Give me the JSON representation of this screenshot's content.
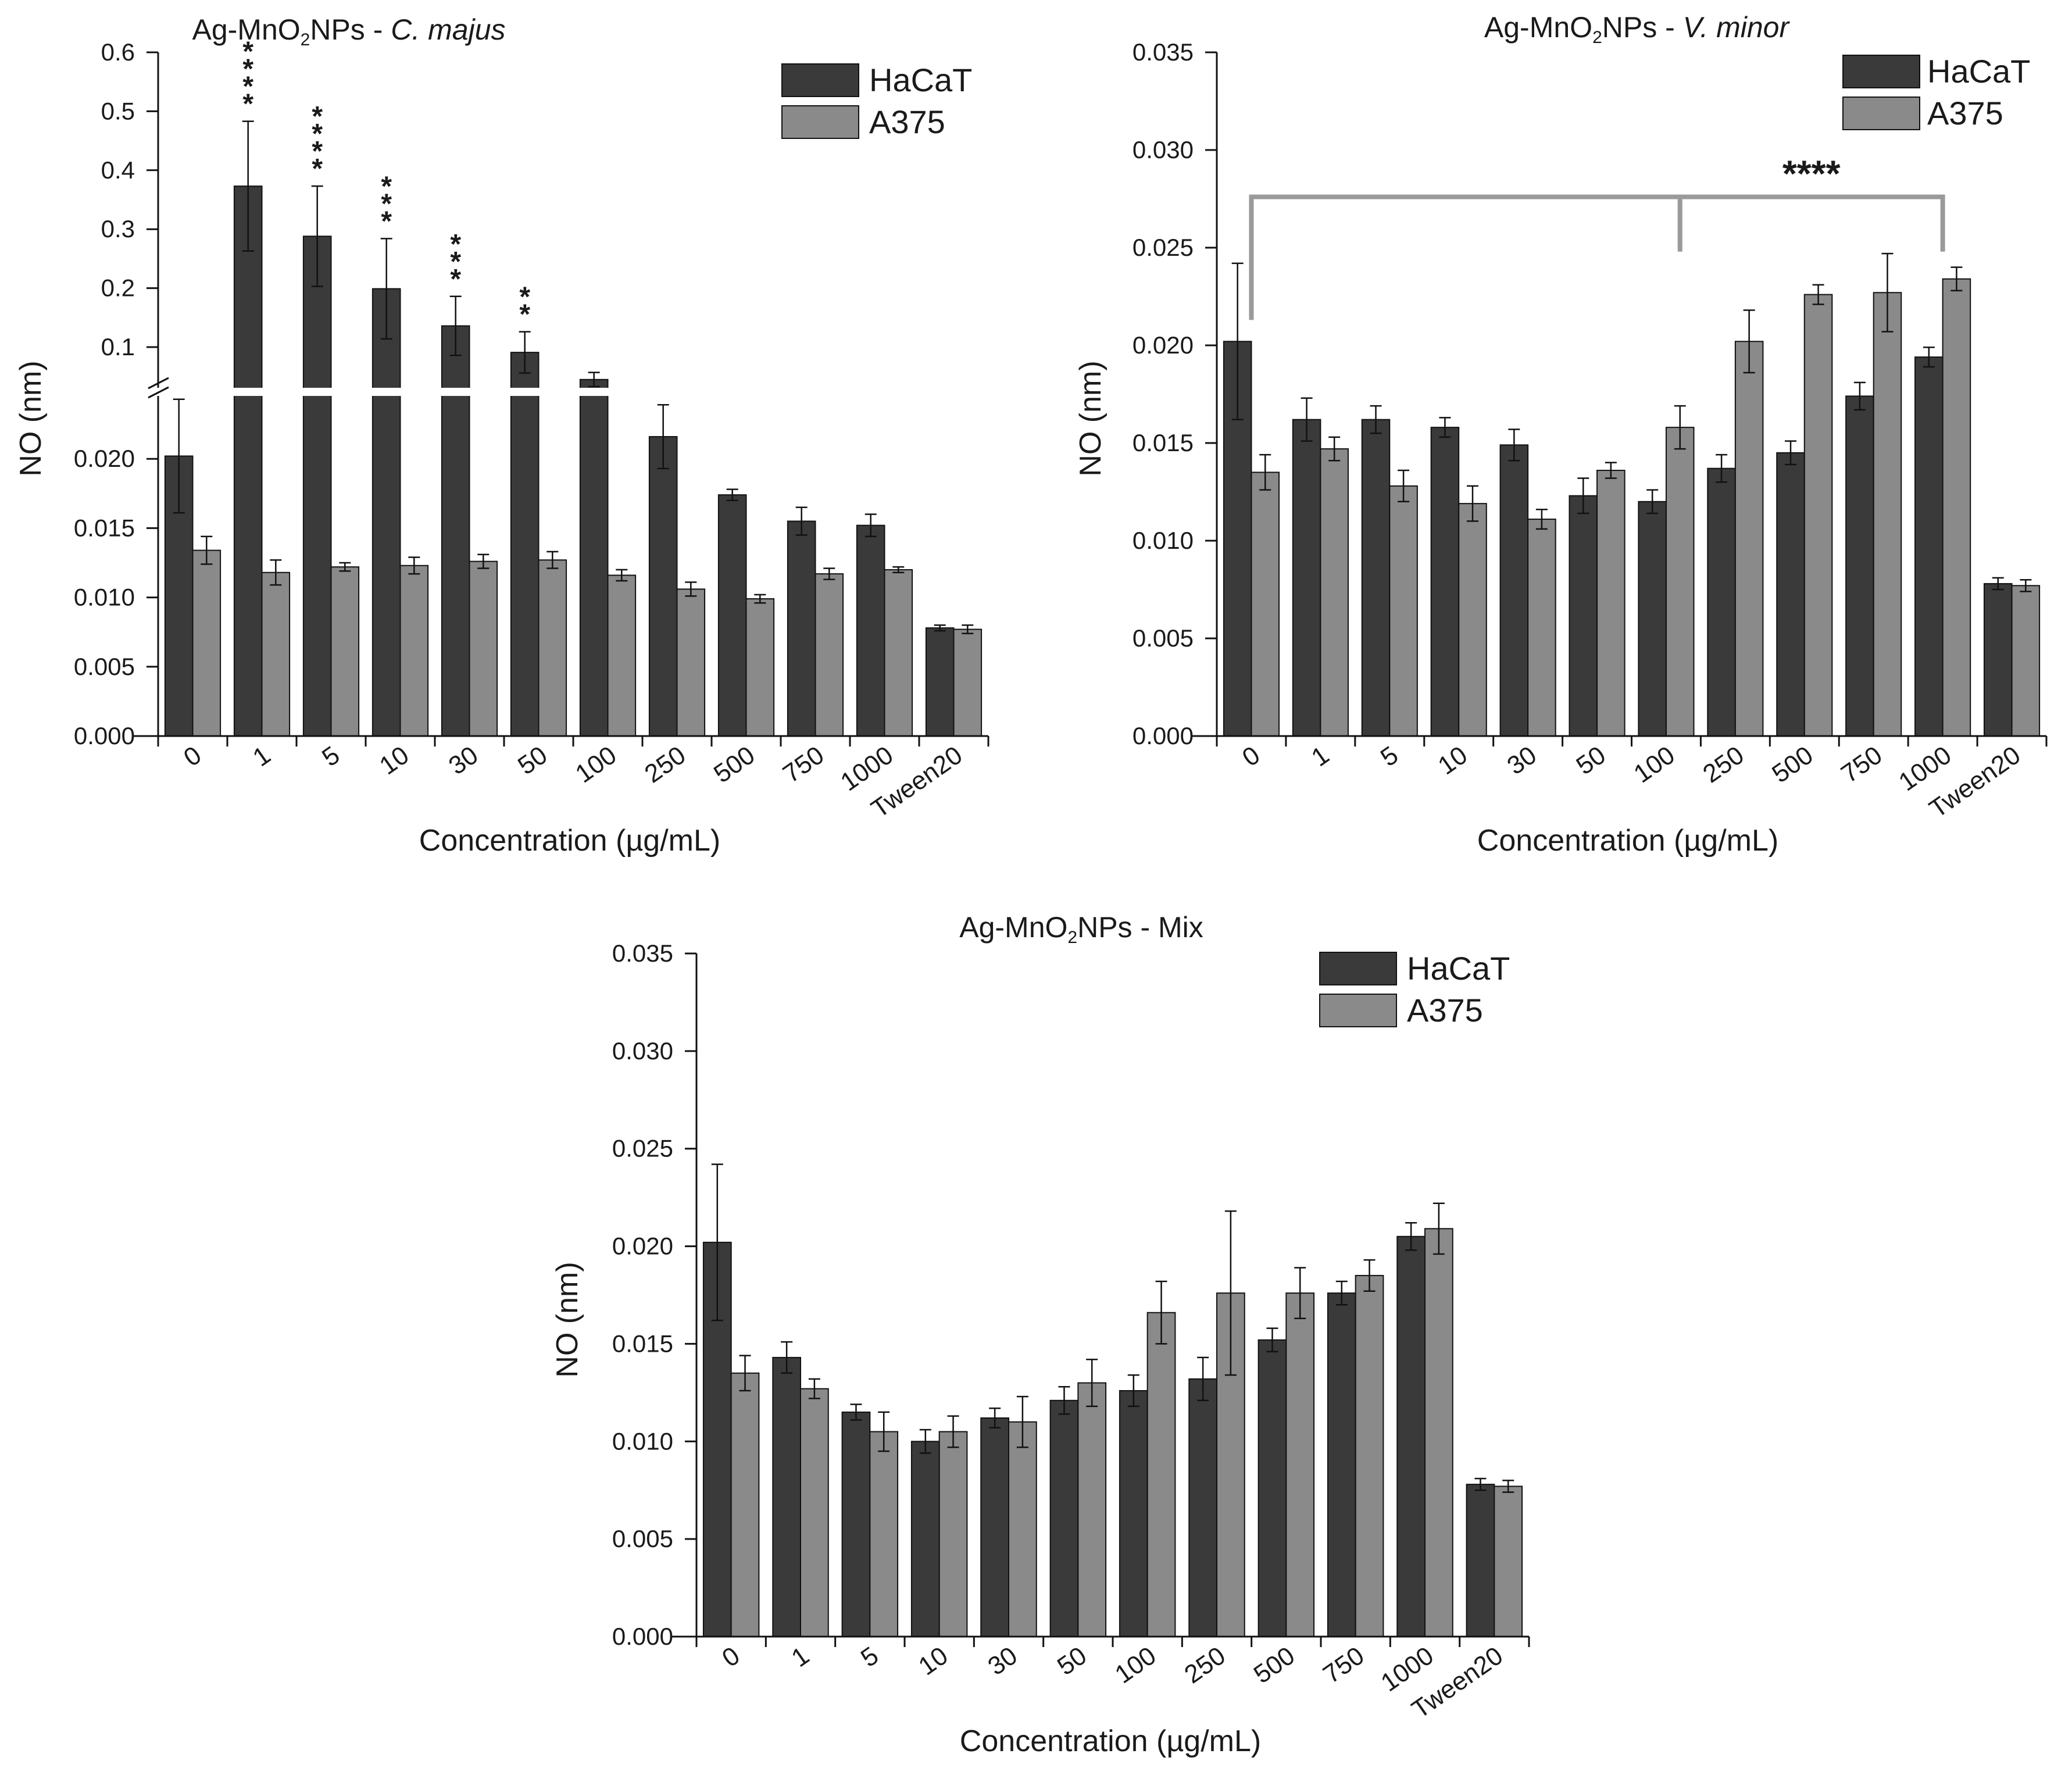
{
  "colors": {
    "hacat": "#3a3a3a",
    "a375": "#8a8a8a",
    "bracket": "#9a9a9a",
    "axis": "#1a1a1a"
  },
  "chart_data": [
    {
      "type": "bar",
      "title_prefix": "Ag-MnO",
      "title_sub": "2",
      "title_mid": "NPs - ",
      "title_italic": "C. majus",
      "xlabel": "Concentration (µg/mL)",
      "ylabel": "NO (nm)",
      "categories": [
        "0",
        "1",
        "5",
        "10",
        "30",
        "50",
        "100",
        "250",
        "500",
        "750",
        "1000",
        "Tween20"
      ],
      "series": [
        {
          "name": "HaCaT",
          "values": [
            0.0202,
            0.373,
            0.288,
            0.199,
            0.136,
            0.091,
            0.045,
            0.0216,
            0.0174,
            0.0155,
            0.0152,
            0.0078
          ],
          "errors": [
            0.0041,
            0.11,
            0.085,
            0.085,
            0.05,
            0.035,
            0.012,
            0.0023,
            0.0004,
            0.001,
            0.0008,
            0.0002
          ]
        },
        {
          "name": "A375",
          "values": [
            0.0134,
            0.0118,
            0.0122,
            0.0123,
            0.0126,
            0.0127,
            0.0116,
            0.0106,
            0.0099,
            0.0117,
            0.012,
            0.0077
          ],
          "errors": [
            0.001,
            0.0009,
            0.0003,
            0.0006,
            0.0005,
            0.0006,
            0.0004,
            0.0005,
            0.0003,
            0.0004,
            0.0002,
            0.0003
          ]
        }
      ],
      "break_axis": {
        "lower_range": [
          0,
          0.025
        ],
        "upper_range": [
          0.03,
          0.6
        ]
      },
      "yticks_lower": [
        "0.000",
        "0.005",
        "0.010",
        "0.015",
        "0.020"
      ],
      "yticks_upper": [
        "0.1",
        "0.2",
        "0.3",
        "0.4",
        "0.5",
        "0.6"
      ],
      "significance": [
        "",
        "****",
        "****",
        "***",
        "***",
        "**",
        "",
        "",
        "",
        "",
        "",
        ""
      ],
      "legend": [
        "HaCaT",
        "A375"
      ]
    },
    {
      "type": "bar",
      "title_prefix": "Ag-MnO",
      "title_sub": "2",
      "title_mid": "NPs - ",
      "title_italic": "V. minor",
      "xlabel": "Concentration (µg/mL)",
      "ylabel": "NO (nm)",
      "categories": [
        "0",
        "1",
        "5",
        "10",
        "30",
        "50",
        "100",
        "250",
        "500",
        "750",
        "1000",
        "Tween20"
      ],
      "series": [
        {
          "name": "HaCaT",
          "values": [
            0.0202,
            0.0162,
            0.0162,
            0.0158,
            0.0149,
            0.0123,
            0.012,
            0.0137,
            0.0145,
            0.0174,
            0.0194,
            0.0078
          ],
          "errors": [
            0.004,
            0.0011,
            0.0007,
            0.0005,
            0.0008,
            0.0009,
            0.0006,
            0.0007,
            0.0006,
            0.0007,
            0.0005,
            0.0003
          ]
        },
        {
          "name": "A375",
          "values": [
            0.0135,
            0.0147,
            0.0128,
            0.0119,
            0.0111,
            0.0136,
            0.0158,
            0.0202,
            0.0226,
            0.0227,
            0.0234,
            0.0077
          ],
          "errors": [
            0.0009,
            0.0006,
            0.0008,
            0.0009,
            0.0005,
            0.0004,
            0.0011,
            0.0016,
            0.0005,
            0.002,
            0.0006,
            0.0003
          ]
        }
      ],
      "ylim": [
        0,
        0.035
      ],
      "yticks": [
        "0.000",
        "0.005",
        "0.010",
        "0.015",
        "0.020",
        "0.025",
        "0.030",
        "0.035"
      ],
      "significance_bracket": "****",
      "legend": [
        "HaCaT",
        "A375"
      ]
    },
    {
      "type": "bar",
      "title_prefix": "Ag-MnO",
      "title_sub": "2",
      "title_mid": "NPs - Mix",
      "title_italic": "",
      "xlabel": "Concentration (µg/mL)",
      "ylabel": "NO (nm)",
      "categories": [
        "0",
        "1",
        "5",
        "10",
        "30",
        "50",
        "100",
        "250",
        "500",
        "750",
        "1000",
        "Tween20"
      ],
      "series": [
        {
          "name": "HaCaT",
          "values": [
            0.0202,
            0.0143,
            0.0115,
            0.01,
            0.0112,
            0.0121,
            0.0126,
            0.0132,
            0.0152,
            0.0176,
            0.0205,
            0.0078
          ],
          "errors": [
            0.004,
            0.0008,
            0.0004,
            0.0006,
            0.0005,
            0.0007,
            0.0008,
            0.0011,
            0.0006,
            0.0006,
            0.0007,
            0.0003
          ]
        },
        {
          "name": "A375",
          "values": [
            0.0135,
            0.0127,
            0.0105,
            0.0105,
            0.011,
            0.013,
            0.0166,
            0.0176,
            0.0176,
            0.0185,
            0.0209,
            0.0077
          ],
          "errors": [
            0.0009,
            0.0005,
            0.001,
            0.0008,
            0.0013,
            0.0012,
            0.0016,
            0.0042,
            0.0013,
            0.0008,
            0.0013,
            0.0003
          ]
        }
      ],
      "ylim": [
        0,
        0.035
      ],
      "yticks": [
        "0.000",
        "0.005",
        "0.010",
        "0.015",
        "0.020",
        "0.025",
        "0.030",
        "0.035"
      ],
      "legend": [
        "HaCaT",
        "A375"
      ]
    }
  ]
}
